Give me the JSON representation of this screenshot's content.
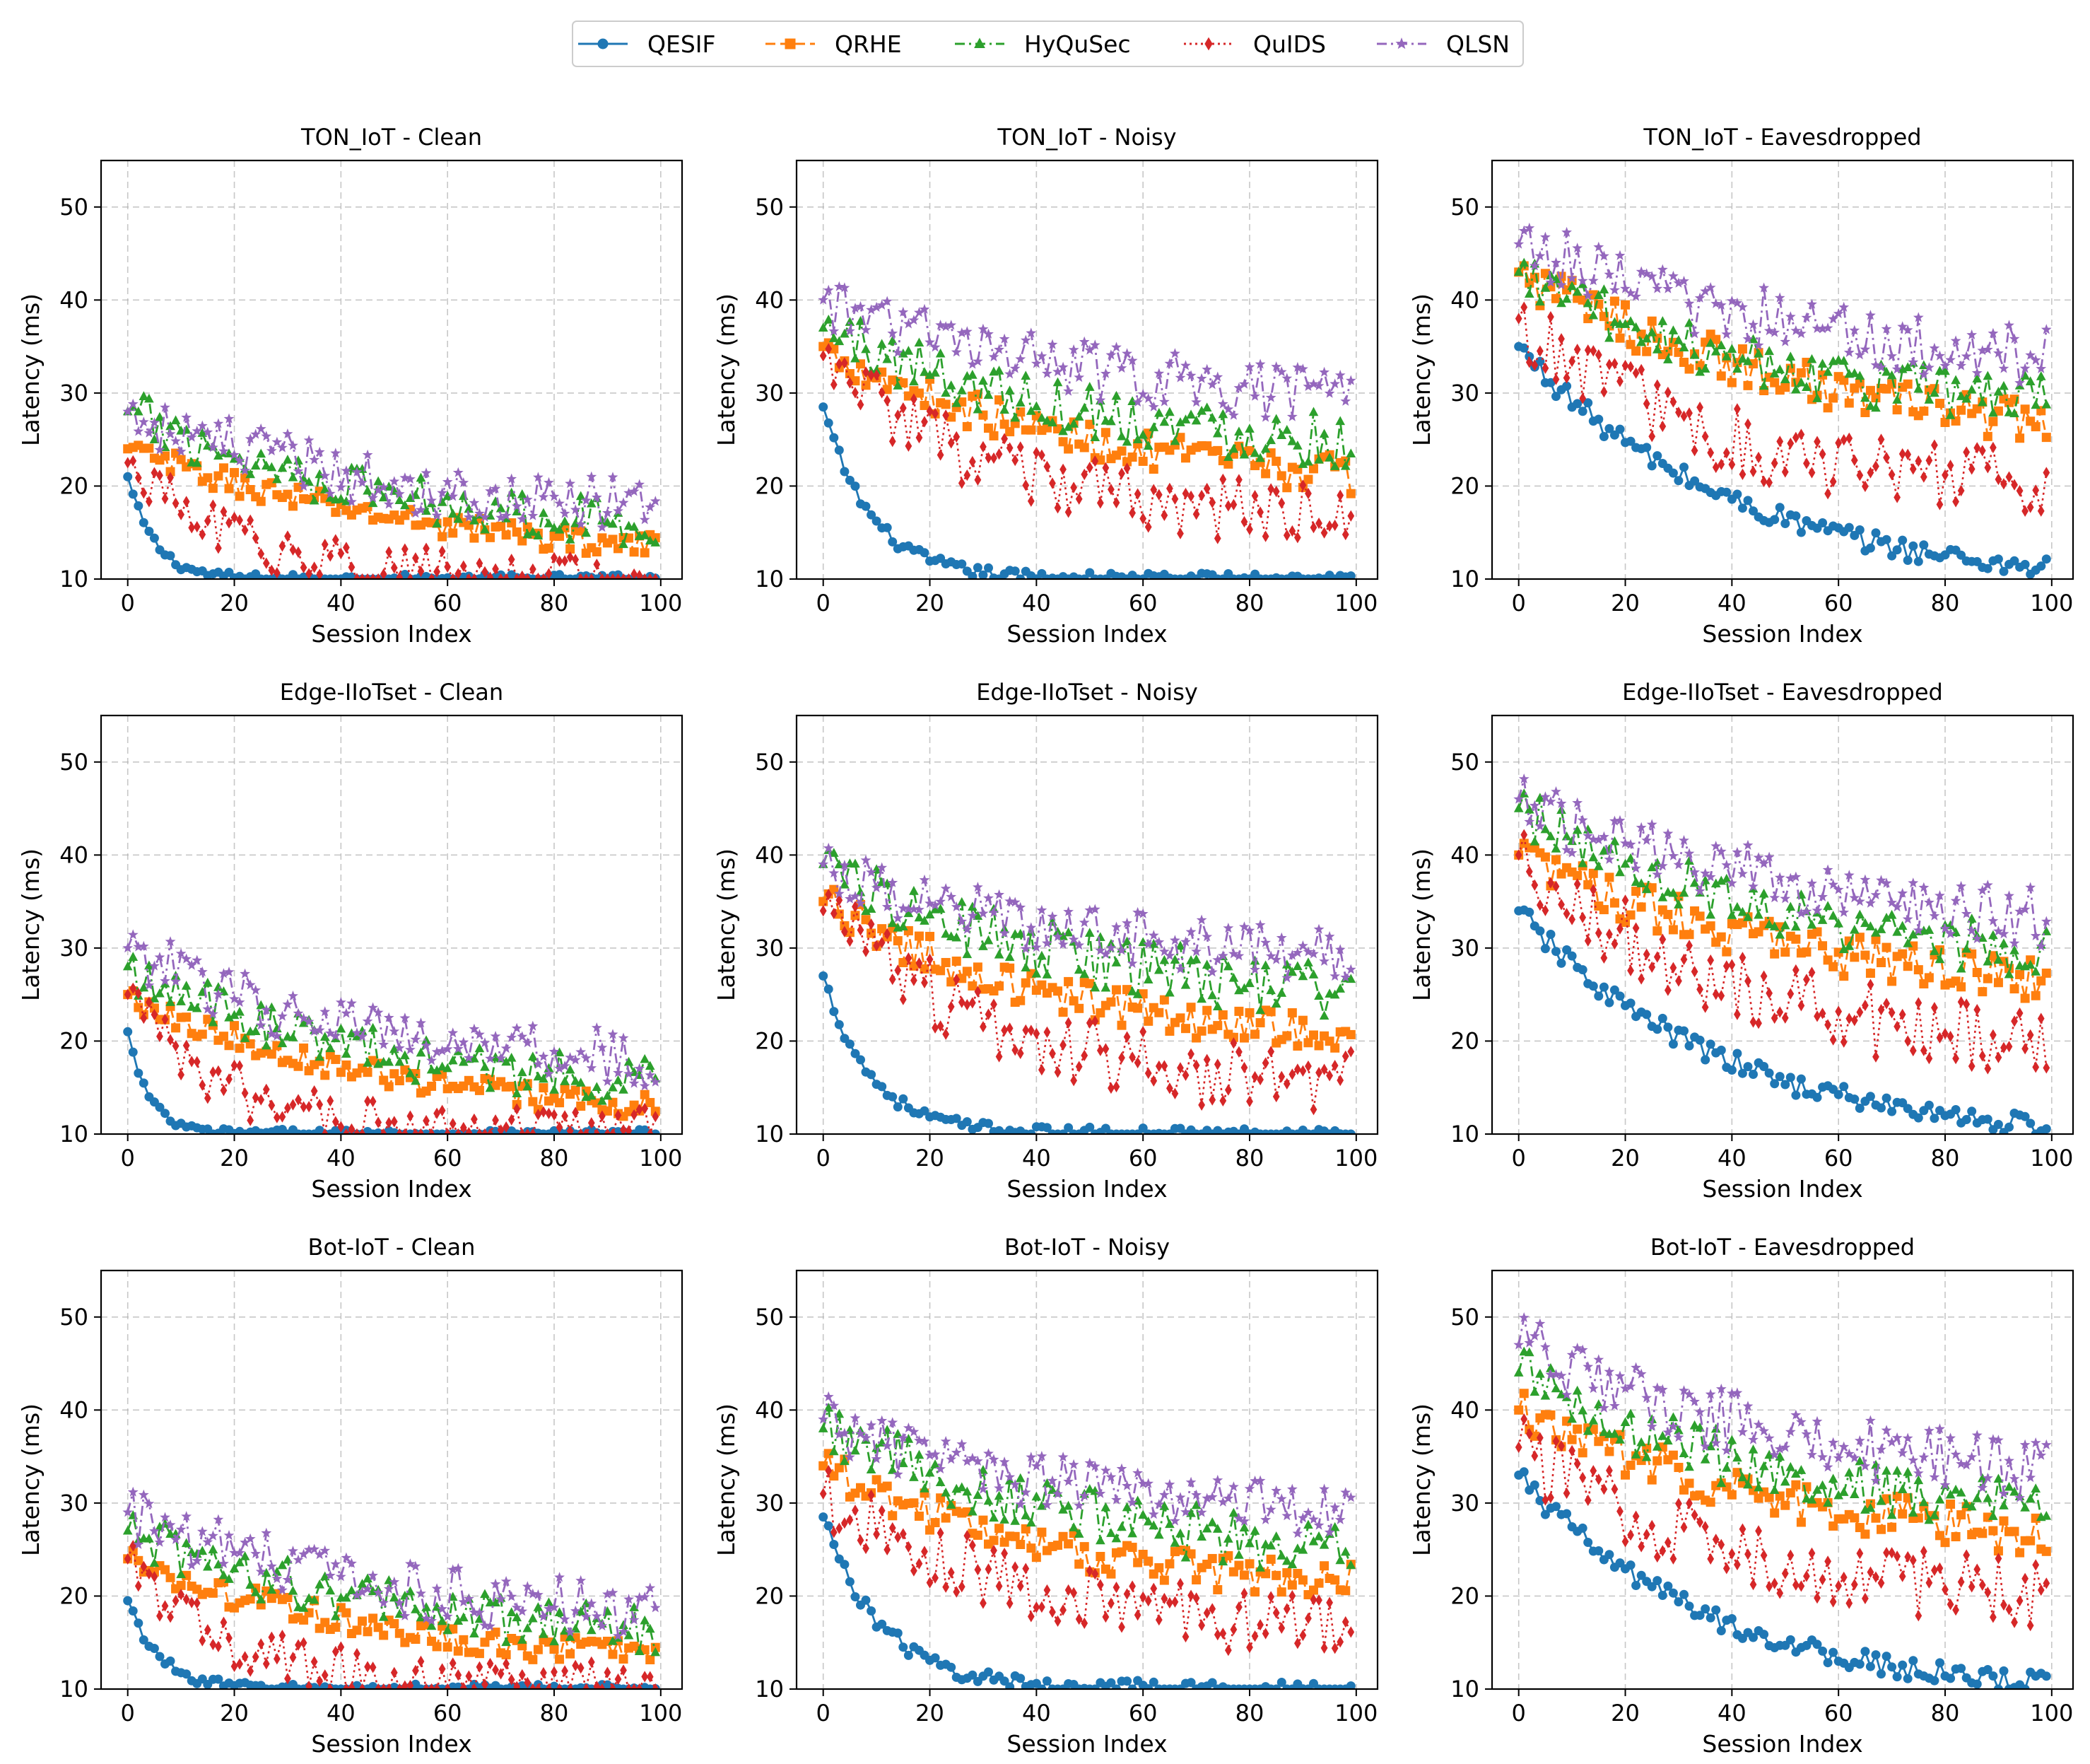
{
  "chart_data": {
    "type": "line",
    "layout": "3x3 grid of subplots",
    "legend": {
      "placement": "top-center",
      "entries": [
        "QESIF",
        "QRHE",
        "HyQuSec",
        "QuIDS",
        "QLSN"
      ]
    },
    "series_styles": [
      {
        "name": "QESIF",
        "color": "#1f77b4",
        "line": "solid",
        "marker": "circle"
      },
      {
        "name": "QRHE",
        "color": "#ff7f0e",
        "line": "dashed",
        "marker": "square"
      },
      {
        "name": "HyQuSec",
        "color": "#2ca02c",
        "line": "dash-dot",
        "marker": "triangle"
      },
      {
        "name": "QuIDS",
        "color": "#d62728",
        "line": "dotted",
        "marker": "diamond"
      },
      {
        "name": "QLSN",
        "color": "#9467bd",
        "line": "dash-dot",
        "marker": "star"
      }
    ],
    "x_range": [
      0,
      99
    ],
    "x_step": 1,
    "xlim": [
      -5,
      104
    ],
    "ylim": [
      10,
      55
    ],
    "xticks": [
      0,
      20,
      40,
      60,
      80,
      100
    ],
    "yticks": [
      10,
      20,
      30,
      40,
      50
    ],
    "xlabel": "Session Index",
    "ylabel": "Latency (ms)",
    "grid": true,
    "series_model": "latency(i) approx max(10, end + (start - end) * exp(-i / tau)) with per-session noise; values read from the plotted curves",
    "subplots": [
      {
        "title": "TON_IoT - Clean",
        "series": [
          {
            "name": "QESIF",
            "start": 21,
            "end": 10,
            "tau": 5,
            "noise": 0.3
          },
          {
            "name": "QRHE",
            "start": 24,
            "end": 11,
            "tau": 60,
            "noise": 0.8
          },
          {
            "name": "HyQuSec",
            "start": 28,
            "end": 14,
            "tau": 50,
            "noise": 1.5
          },
          {
            "name": "QuIDS",
            "start": 22.5,
            "end": 10,
            "tau": 20,
            "noise": 1.5
          },
          {
            "name": "QLSN",
            "start": 28,
            "end": 16,
            "tau": 50,
            "noise": 1.8
          }
        ]
      },
      {
        "title": "TON_IoT - Noisy",
        "series": [
          {
            "name": "QESIF",
            "start": 28.5,
            "end": 10,
            "tau": 9,
            "noise": 0.4
          },
          {
            "name": "QRHE",
            "start": 35,
            "end": 19,
            "tau": 50,
            "noise": 1.2
          },
          {
            "name": "HyQuSec",
            "start": 37,
            "end": 23,
            "tau": 50,
            "noise": 1.8
          },
          {
            "name": "QuIDS",
            "start": 34,
            "end": 16,
            "tau": 30,
            "noise": 2.0
          },
          {
            "name": "QLSN",
            "start": 40,
            "end": 28,
            "tau": 50,
            "noise": 1.8
          }
        ]
      },
      {
        "title": "TON_IoT - Eavesdropped",
        "series": [
          {
            "name": "QESIF",
            "start": 35,
            "end": 9,
            "tau": 40,
            "noise": 0.7
          },
          {
            "name": "QRHE",
            "start": 43,
            "end": 23,
            "tau": 60,
            "noise": 1.4
          },
          {
            "name": "HyQuSec",
            "start": 43,
            "end": 27,
            "tau": 50,
            "noise": 1.7
          },
          {
            "name": "QuIDS",
            "start": 38,
            "end": 19,
            "tau": 35,
            "noise": 2.2
          },
          {
            "name": "QLSN",
            "start": 46,
            "end": 31,
            "tau": 60,
            "noise": 2.0
          }
        ]
      },
      {
        "title": "Edge-IIoTset - Clean",
        "series": [
          {
            "name": "QESIF",
            "start": 21,
            "end": 10,
            "tau": 4,
            "noise": 0.3
          },
          {
            "name": "QRHE",
            "start": 25,
            "end": 11,
            "tau": 50,
            "noise": 0.8
          },
          {
            "name": "HyQuSec",
            "start": 28,
            "end": 14,
            "tau": 45,
            "noise": 1.5
          },
          {
            "name": "QuIDS",
            "start": 25,
            "end": 10,
            "tau": 18,
            "noise": 1.6
          },
          {
            "name": "QLSN",
            "start": 30,
            "end": 17,
            "tau": 40,
            "noise": 1.8
          }
        ]
      },
      {
        "title": "Edge-IIoTset - Noisy",
        "series": [
          {
            "name": "QESIF",
            "start": 27,
            "end": 10,
            "tau": 9,
            "noise": 0.4
          },
          {
            "name": "QRHE",
            "start": 35,
            "end": 19,
            "tau": 45,
            "noise": 1.2
          },
          {
            "name": "HyQuSec",
            "start": 39,
            "end": 23,
            "tau": 50,
            "noise": 1.8
          },
          {
            "name": "QuIDS",
            "start": 34,
            "end": 14,
            "tau": 35,
            "noise": 2.2
          },
          {
            "name": "QLSN",
            "start": 39,
            "end": 28,
            "tau": 45,
            "noise": 1.8
          }
        ]
      },
      {
        "title": "Edge-IIoTset - Eavesdropped",
        "series": [
          {
            "name": "QESIF",
            "start": 34,
            "end": 9,
            "tau": 38,
            "noise": 0.7
          },
          {
            "name": "QRHE",
            "start": 40,
            "end": 24,
            "tau": 55,
            "noise": 1.4
          },
          {
            "name": "HyQuSec",
            "start": 45,
            "end": 27,
            "tau": 50,
            "noise": 1.7
          },
          {
            "name": "QuIDS",
            "start": 40,
            "end": 18,
            "tau": 40,
            "noise": 2.3
          },
          {
            "name": "QLSN",
            "start": 46,
            "end": 31,
            "tau": 55,
            "noise": 2.0
          }
        ]
      },
      {
        "title": "Bot-IoT - Clean",
        "series": [
          {
            "name": "QESIF",
            "start": 19.5,
            "end": 10,
            "tau": 6,
            "noise": 0.3
          },
          {
            "name": "QRHE",
            "start": 24,
            "end": 11.5,
            "tau": 55,
            "noise": 0.9
          },
          {
            "name": "HyQuSec",
            "start": 27,
            "end": 14.5,
            "tau": 50,
            "noise": 1.5
          },
          {
            "name": "QuIDS",
            "start": 24,
            "end": 10,
            "tau": 20,
            "noise": 1.6
          },
          {
            "name": "QLSN",
            "start": 29,
            "end": 17,
            "tau": 45,
            "noise": 1.8
          }
        ]
      },
      {
        "title": "Bot-IoT - Noisy",
        "series": [
          {
            "name": "QESIF",
            "start": 28.5,
            "end": 10,
            "tau": 11,
            "noise": 0.5
          },
          {
            "name": "QRHE",
            "start": 34,
            "end": 20,
            "tau": 45,
            "noise": 1.2
          },
          {
            "name": "HyQuSec",
            "start": 38,
            "end": 23,
            "tau": 50,
            "noise": 1.8
          },
          {
            "name": "QuIDS",
            "start": 31,
            "end": 15,
            "tau": 40,
            "noise": 2.0
          },
          {
            "name": "QLSN",
            "start": 39,
            "end": 28,
            "tau": 45,
            "noise": 1.8
          }
        ]
      },
      {
        "title": "Bot-IoT - Eavesdropped",
        "series": [
          {
            "name": "QESIF",
            "start": 33,
            "end": 9,
            "tau": 36,
            "noise": 0.7
          },
          {
            "name": "QRHE",
            "start": 40,
            "end": 24,
            "tau": 55,
            "noise": 1.4
          },
          {
            "name": "HyQuSec",
            "start": 44,
            "end": 27,
            "tau": 50,
            "noise": 1.7
          },
          {
            "name": "QuIDS",
            "start": 36,
            "end": 19,
            "tau": 40,
            "noise": 2.2
          },
          {
            "name": "QLSN",
            "start": 47,
            "end": 31,
            "tau": 55,
            "noise": 2.0
          }
        ]
      }
    ]
  }
}
